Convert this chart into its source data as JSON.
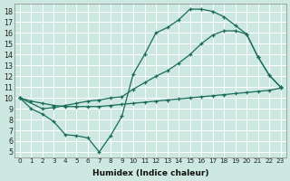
{
  "xlabel": "Humidex (Indice chaleur)",
  "bg_color": "#cce8e0",
  "grid_color": "#ffffff",
  "line_color": "#1a6b5a",
  "xlim": [
    -0.5,
    23.5
  ],
  "ylim": [
    4.5,
    18.7
  ],
  "xticks": [
    0,
    1,
    2,
    3,
    4,
    5,
    6,
    7,
    8,
    9,
    10,
    11,
    12,
    13,
    14,
    15,
    16,
    17,
    18,
    19,
    20,
    21,
    22,
    23
  ],
  "yticks": [
    5,
    6,
    7,
    8,
    9,
    10,
    11,
    12,
    13,
    14,
    15,
    16,
    17,
    18
  ],
  "line1_x": [
    0,
    1,
    2,
    3,
    4,
    5,
    6,
    7,
    8,
    9,
    10,
    11,
    12,
    13,
    14,
    15,
    16,
    17,
    18,
    19,
    20,
    21,
    22,
    23
  ],
  "line1_y": [
    10.0,
    9.0,
    8.5,
    7.8,
    6.6,
    6.5,
    6.3,
    5.0,
    6.5,
    8.3,
    12.2,
    14.0,
    16.0,
    16.5,
    17.2,
    18.2,
    18.2,
    18.0,
    17.5,
    16.7,
    15.9,
    13.8,
    12.1,
    11.0
  ],
  "line2_x": [
    0,
    2,
    3,
    4,
    5,
    6,
    7,
    8,
    9,
    10,
    11,
    12,
    13,
    14,
    15,
    16,
    17,
    18,
    19,
    20,
    21,
    22,
    23
  ],
  "line2_y": [
    10.0,
    9.0,
    9.1,
    9.3,
    9.5,
    9.7,
    9.8,
    10.0,
    10.1,
    10.8,
    11.4,
    12.0,
    12.5,
    13.2,
    14.0,
    15.0,
    15.8,
    16.2,
    16.2,
    15.9,
    13.8,
    12.1,
    11.0
  ],
  "line3_x": [
    0,
    1,
    2,
    3,
    4,
    5,
    6,
    7,
    8,
    9,
    10,
    11,
    12,
    13,
    14,
    15,
    16,
    17,
    18,
    19,
    20,
    21,
    22,
    23
  ],
  "line3_y": [
    10.0,
    9.7,
    9.5,
    9.3,
    9.2,
    9.2,
    9.2,
    9.2,
    9.3,
    9.4,
    9.5,
    9.6,
    9.7,
    9.8,
    9.9,
    10.0,
    10.1,
    10.2,
    10.3,
    10.4,
    10.5,
    10.6,
    10.7,
    10.9
  ]
}
